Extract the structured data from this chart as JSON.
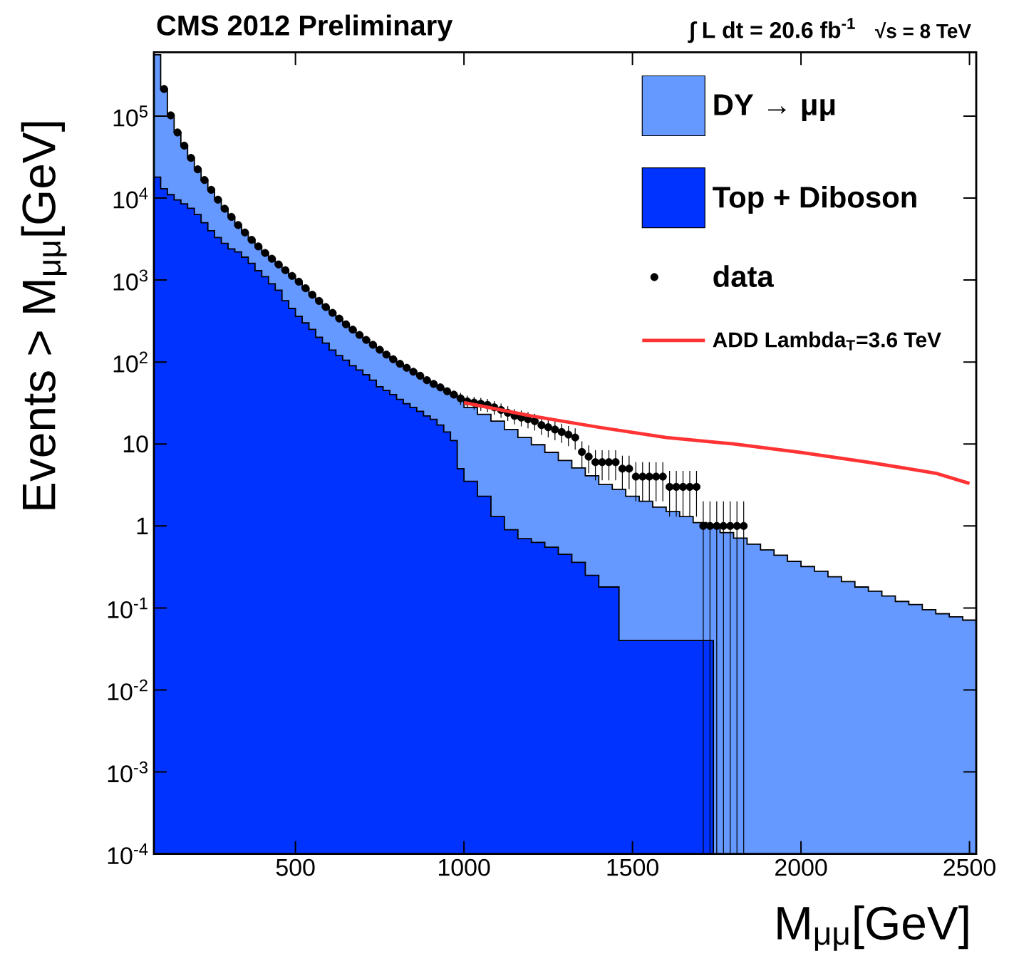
{
  "chart_data": {
    "type": "area",
    "title": "CMS 2012 Preliminary",
    "annotations": [
      "∫ L dt = 20.6 fb$^{-1}$",
      "√s = 8 TeV"
    ],
    "xlabel": "M$_{μμ}$[GeV]",
    "ylabel": "Events > M$_{μμ}$[GeV]",
    "xlim": [
      80,
      2520
    ],
    "ylim": [
      0.0001,
      600000
    ],
    "log": true,
    "legend": "top right",
    "xticks": [
      500,
      1000,
      1500,
      2000,
      2500
    ],
    "yticks": [
      {
        "value": 0.0001,
        "label": "10$^{-4}$"
      },
      {
        "value": 0.001,
        "label": "10$^{-3}$"
      },
      {
        "value": 0.01,
        "label": "10$^{-2}$"
      },
      {
        "value": 0.1,
        "label": "10$^{-1}$"
      },
      1,
      10,
      {
        "value": 100,
        "label": "10$^{2}$"
      },
      {
        "value": 1000,
        "label": "10$^{3}$"
      },
      {
        "value": 10000,
        "label": "10$^{4}$"
      },
      {
        "value": 100000,
        "label": "10$^{5}$"
      }
    ],
    "series": [
      {
        "name": "DY → μμ",
        "color": "#6699ff",
        "x": [
          80,
          100,
          120,
          140,
          160,
          180,
          200,
          220,
          240,
          260,
          280,
          300,
          320,
          340,
          360,
          380,
          400,
          420,
          440,
          460,
          480,
          500,
          520,
          540,
          560,
          580,
          600,
          620,
          640,
          660,
          680,
          700,
          720,
          740,
          760,
          780,
          800,
          820,
          840,
          860,
          880,
          900,
          920,
          940,
          960,
          980,
          1000,
          1040,
          1080,
          1120,
          1160,
          1200,
          1240,
          1280,
          1320,
          1360,
          1400,
          1440,
          1480,
          1520,
          1560,
          1600,
          1640,
          1680,
          1720,
          1760,
          1800,
          1840,
          1880,
          1920,
          1960,
          2000,
          2040,
          2080,
          2120,
          2160,
          2200,
          2240,
          2280,
          2320,
          2360,
          2400,
          2440,
          2480,
          2520
        ],
        "values": [
          560000,
          214000,
          102000,
          63100,
          43600,
          30900,
          22400,
          16600,
          12600,
          9550,
          7410,
          5890,
          4680,
          3800,
          3090,
          2570,
          2138,
          1820,
          1549,
          1318,
          1122,
          955,
          794,
          661,
          556,
          468,
          398,
          339,
          288,
          248,
          214,
          186,
          162,
          141,
          123,
          108,
          95,
          85,
          76,
          68,
          60,
          54,
          49,
          44,
          40,
          36,
          28,
          23,
          19,
          15,
          12,
          9.8,
          7.9,
          6.3,
          5.1,
          4.1,
          3.2,
          2.8,
          2.3,
          2.0,
          1.7,
          1.5,
          1.3,
          1.1,
          0.98,
          0.83,
          0.71,
          0.6,
          0.51,
          0.44,
          0.37,
          0.32,
          0.28,
          0.24,
          0.21,
          0.18,
          0.16,
          0.14,
          0.12,
          0.11,
          0.095,
          0.085,
          0.078,
          0.071,
          0.066
        ]
      },
      {
        "name": "Top + Diboson",
        "color": "#0033ff",
        "x": [
          80,
          100,
          120,
          140,
          160,
          180,
          200,
          220,
          240,
          260,
          280,
          300,
          320,
          340,
          360,
          380,
          400,
          420,
          440,
          460,
          480,
          500,
          520,
          540,
          560,
          580,
          600,
          620,
          640,
          660,
          680,
          700,
          720,
          740,
          760,
          780,
          800,
          820,
          840,
          860,
          880,
          900,
          920,
          940,
          960,
          980,
          1000,
          1040,
          1080,
          1120,
          1160,
          1200,
          1240,
          1280,
          1320,
          1360,
          1400,
          1460,
          1740
        ],
        "values": [
          18000,
          13000,
          11000,
          9500,
          8500,
          7500,
          6300,
          5000,
          4000,
          3300,
          2800,
          2400,
          2200,
          1900,
          1600,
          1300,
          1100,
          900,
          750,
          560,
          450,
          360,
          300,
          250,
          200,
          170,
          140,
          120,
          105,
          90,
          80,
          70,
          60,
          50,
          45,
          40,
          35,
          31,
          28,
          25,
          22,
          20,
          17,
          14,
          11,
          5,
          3.5,
          2.3,
          1.3,
          0.9,
          0.7,
          0.63,
          0.55,
          0.45,
          0.36,
          0.25,
          0.18,
          0.04,
          0.04
        ]
      },
      {
        "name": "data",
        "type": "scatter",
        "color": "#000000",
        "x": [
          110,
          130,
          150,
          170,
          190,
          210,
          230,
          250,
          270,
          290,
          310,
          330,
          350,
          370,
          390,
          410,
          430,
          450,
          470,
          490,
          510,
          530,
          550,
          570,
          590,
          610,
          630,
          650,
          670,
          690,
          710,
          730,
          750,
          770,
          790,
          810,
          830,
          850,
          870,
          890,
          910,
          930,
          950,
          970,
          990,
          1010,
          1030,
          1050,
          1070,
          1090,
          1110,
          1130,
          1150,
          1170,
          1190,
          1210,
          1230,
          1250,
          1270,
          1290,
          1310,
          1330,
          1350,
          1370,
          1390,
          1410,
          1430,
          1450,
          1470,
          1490,
          1510,
          1530,
          1550,
          1570,
          1590,
          1610,
          1630,
          1650,
          1670,
          1690,
          1710,
          1730,
          1750,
          1770,
          1790,
          1810,
          1830
        ],
        "values": [
          214000,
          102000,
          63100,
          43600,
          30900,
          22400,
          16600,
          12600,
          9550,
          7410,
          5890,
          4680,
          3800,
          3090,
          2570,
          2138,
          1820,
          1549,
          1318,
          1122,
          955,
          794,
          661,
          556,
          468,
          398,
          339,
          288,
          248,
          214,
          186,
          162,
          141,
          123,
          108,
          95,
          85,
          76,
          68,
          60,
          54,
          49,
          44,
          40,
          36,
          33,
          32,
          31,
          30,
          28,
          26,
          24,
          22,
          21,
          20,
          19,
          17,
          16,
          15,
          14,
          13,
          12,
          8,
          7,
          6,
          6,
          6,
          6,
          5,
          5,
          4,
          4,
          4,
          4,
          4,
          3,
          3,
          3,
          3,
          3,
          1,
          1,
          1,
          1,
          1,
          1,
          1
        ],
        "errors": [
          null,
          null,
          null,
          null,
          null,
          null,
          null,
          null,
          null,
          null,
          null,
          null,
          null,
          null,
          null,
          null,
          null,
          null,
          null,
          null,
          null,
          null,
          null,
          null,
          null,
          null,
          null,
          null,
          null,
          null,
          null,
          null,
          null,
          null,
          null,
          null,
          null,
          null,
          null,
          null,
          null,
          null,
          null,
          null,
          6.0,
          5.7,
          5.7,
          5.6,
          5.5,
          5.3,
          5.1,
          4.9,
          4.7,
          4.6,
          4.5,
          4.4,
          4.1,
          4,
          3.9,
          3.7,
          3.6,
          3.5,
          2.8,
          2.6,
          2.4,
          2.4,
          2.4,
          2.4,
          2.2,
          2.2,
          2,
          2,
          2,
          2,
          2,
          1.7,
          1.7,
          1.7,
          1.7,
          1.7,
          [
            0.0001,
            2
          ],
          [
            0.0001,
            2
          ],
          [
            0.0001,
            2
          ],
          [
            0.0001,
            2
          ],
          [
            0.0001,
            2
          ],
          [
            0.0001,
            2
          ],
          [
            0.0001,
            2
          ]
        ]
      },
      {
        "name": "ADD Lambda$_{T}$=3.6 TeV",
        "type": "line",
        "color": "#ff3333",
        "x": [
          1000,
          1200,
          1400,
          1600,
          1800,
          2000,
          2200,
          2400,
          2500
        ],
        "values": [
          32,
          22,
          16,
          12,
          10,
          7.9,
          6.0,
          4.4,
          3.3
        ]
      }
    ]
  }
}
